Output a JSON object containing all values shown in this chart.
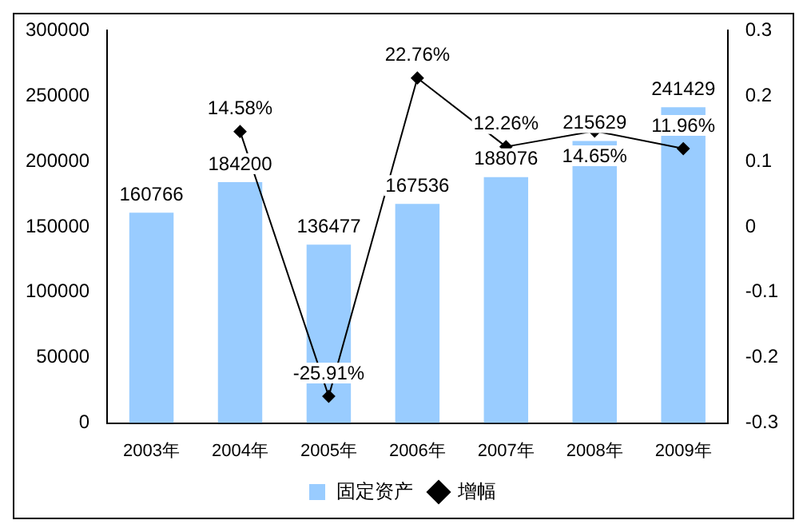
{
  "chart_data": {
    "type": "bar",
    "categories": [
      "2003年",
      "2004年",
      "2005年",
      "2006年",
      "2007年",
      "2008年",
      "2009年"
    ],
    "series": [
      {
        "name": "固定资产",
        "color": "#99ccff",
        "values": [
          160766,
          184200,
          136477,
          167536,
          188076,
          215629,
          241429
        ],
        "value_labels": [
          "160766",
          "184200",
          "136477",
          "167536",
          "188076",
          "215629",
          "241429"
        ]
      },
      {
        "name": "增幅",
        "type": "line",
        "axis": "y2",
        "color": "#000000",
        "marker": "diamond",
        "values": [
          null,
          0.1458,
          -0.2591,
          0.2276,
          0.1226,
          0.1465,
          0.1196
        ],
        "value_labels": [
          null,
          "14.58%",
          "-25.91%",
          "22.76%",
          "12.26%",
          "14.65%",
          "11.96%"
        ]
      }
    ],
    "ylim": [
      0,
      300000
    ],
    "yticks": [
      0,
      50000,
      100000,
      150000,
      200000,
      250000,
      300000
    ],
    "y2lim": [
      -0.3,
      0.3
    ],
    "y2ticks": [
      -0.3,
      -0.2,
      -0.1,
      0,
      0.1,
      0.2,
      0.3
    ],
    "grid": false,
    "legend": "bottom"
  }
}
